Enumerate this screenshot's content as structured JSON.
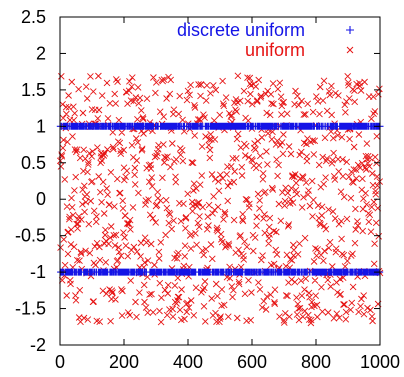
{
  "chart_data": {
    "type": "scatter",
    "title": "",
    "xlabel": "",
    "ylabel": "",
    "xlim": [
      0,
      1000
    ],
    "ylim": [
      -2,
      2.5
    ],
    "x_ticks": [
      0,
      200,
      400,
      600,
      800,
      1000
    ],
    "x_tick_labels": [
      "0",
      "200",
      "400",
      "600",
      "800",
      "1000"
    ],
    "y_ticks": [
      -2,
      -1.5,
      -1,
      -0.5,
      0,
      0.5,
      1,
      1.5,
      2,
      2.5
    ],
    "y_tick_labels": [
      "-2",
      "-1.5",
      "-1",
      "-0.5",
      "0",
      "0.5",
      "1",
      "1.5",
      "2",
      "2.5"
    ],
    "grid": false,
    "legend_position": "top-right",
    "series": [
      {
        "name": "discrete uniform",
        "marker": "plus",
        "color": "#1414e6",
        "description": "points at y = 1 or y = -1 for x = 1..1000",
        "y_levels": [
          1,
          -1
        ],
        "n_points": 1000
      },
      {
        "name": "uniform",
        "marker": "x",
        "color": "#e61414",
        "description": "points uniformly distributed in y for x = 1..1000",
        "y_range": [
          -1.7,
          1.7
        ],
        "n_points": 1000
      }
    ]
  }
}
